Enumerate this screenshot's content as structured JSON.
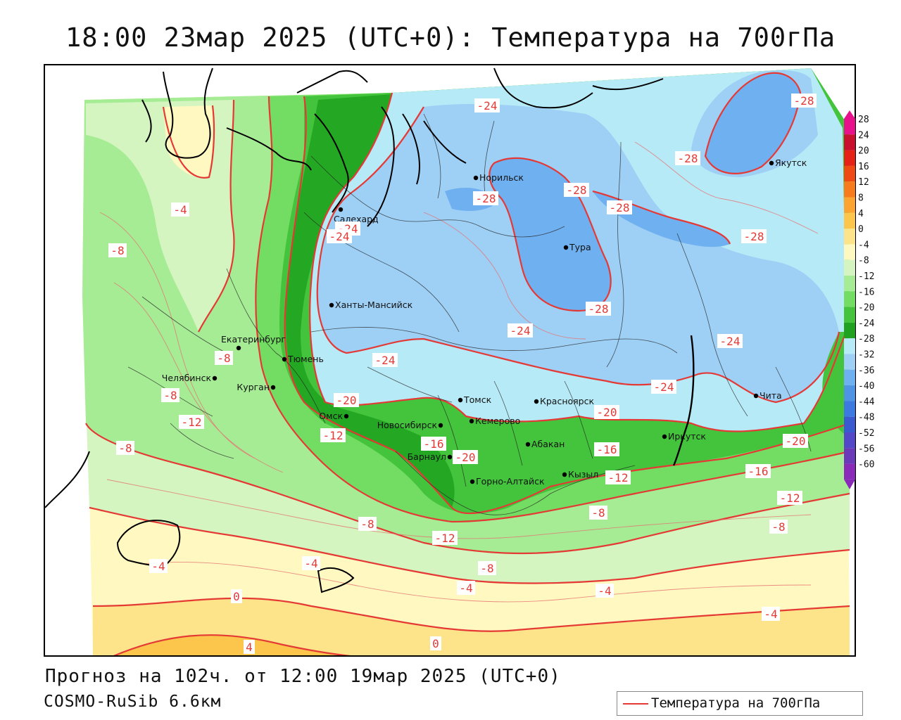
{
  "title": "18:00 23мар 2025 (UTC+0): Температура на 700гПа",
  "footer": {
    "forecast": "Прогноз на 102ч. от 12:00 19мар 2025 (UTC+0)",
    "model": "COSMO-RuSib 6.6км"
  },
  "legend": {
    "line_label": "Температура на 700гПа",
    "line_color": "#e53935"
  },
  "colorbar": {
    "labels": [
      "28",
      "24",
      "20",
      "16",
      "12",
      "8",
      "4",
      "0",
      "-4",
      "-8",
      "-12",
      "-16",
      "-20",
      "-24",
      "-28",
      "-32",
      "-36",
      "-40",
      "-44",
      "-48",
      "-52",
      "-56",
      "-60"
    ],
    "colors": [
      "#e8118c",
      "#c8102e",
      "#e42218",
      "#f04a14",
      "#f77b1d",
      "#fba432",
      "#fcc64c",
      "#fde48a",
      "#fff8c0",
      "#d4f5c0",
      "#a5ec95",
      "#73dc62",
      "#44c43c",
      "#1fa21f",
      "#b7eaf7",
      "#9ecff5",
      "#6fb0f0",
      "#4e93e4",
      "#3d7ae0",
      "#3a5ad0",
      "#5248c8",
      "#6a3ab8",
      "#8a2ab8"
    ]
  },
  "cities": [
    {
      "name": "Норильск"
    },
    {
      "name": "Якутск"
    },
    {
      "name": "Салехард"
    },
    {
      "name": "Тура"
    },
    {
      "name": "Ханты-Мансийск"
    },
    {
      "name": "Екатеринбург"
    },
    {
      "name": "Тюмень"
    },
    {
      "name": "Челябинск"
    },
    {
      "name": "Курган"
    },
    {
      "name": "Омск"
    },
    {
      "name": "Новосибирск"
    },
    {
      "name": "Томск"
    },
    {
      "name": "Красноярск"
    },
    {
      "name": "Кемерово"
    },
    {
      "name": "Барнаул"
    },
    {
      "name": "Абакан"
    },
    {
      "name": "Иркутск"
    },
    {
      "name": "Чита"
    },
    {
      "name": "Горно-Алтайск"
    },
    {
      "name": "Кызыл"
    }
  ],
  "isotherm_labels": [
    {
      "text": "-24"
    },
    {
      "text": "-28"
    },
    {
      "text": "-28"
    },
    {
      "text": "-28"
    },
    {
      "text": "-28"
    },
    {
      "text": "-28"
    },
    {
      "text": "-28"
    },
    {
      "text": "-28"
    },
    {
      "text": "-24"
    },
    {
      "text": "-24"
    },
    {
      "text": "-24"
    },
    {
      "text": "-24"
    },
    {
      "text": "-24"
    },
    {
      "text": "-20"
    },
    {
      "text": "-20"
    },
    {
      "text": "-20"
    },
    {
      "text": "-20"
    },
    {
      "text": "-16"
    },
    {
      "text": "-16"
    },
    {
      "text": "-16"
    },
    {
      "text": "-12"
    },
    {
      "text": "-12"
    },
    {
      "text": "-12"
    },
    {
      "text": "-12"
    },
    {
      "text": "-8"
    },
    {
      "text": "-8"
    },
    {
      "text": "-8"
    },
    {
      "text": "-8"
    },
    {
      "text": "-8"
    },
    {
      "text": "-8"
    },
    {
      "text": "-8"
    },
    {
      "text": "-4"
    },
    {
      "text": "-4"
    },
    {
      "text": "-4"
    },
    {
      "text": "-4"
    },
    {
      "text": "-4"
    },
    {
      "text": "-4"
    },
    {
      "text": "0"
    },
    {
      "text": "0"
    },
    {
      "text": "4"
    },
    {
      "text": "-12"
    },
    {
      "text": "-8"
    },
    {
      "text": "-24"
    }
  ]
}
